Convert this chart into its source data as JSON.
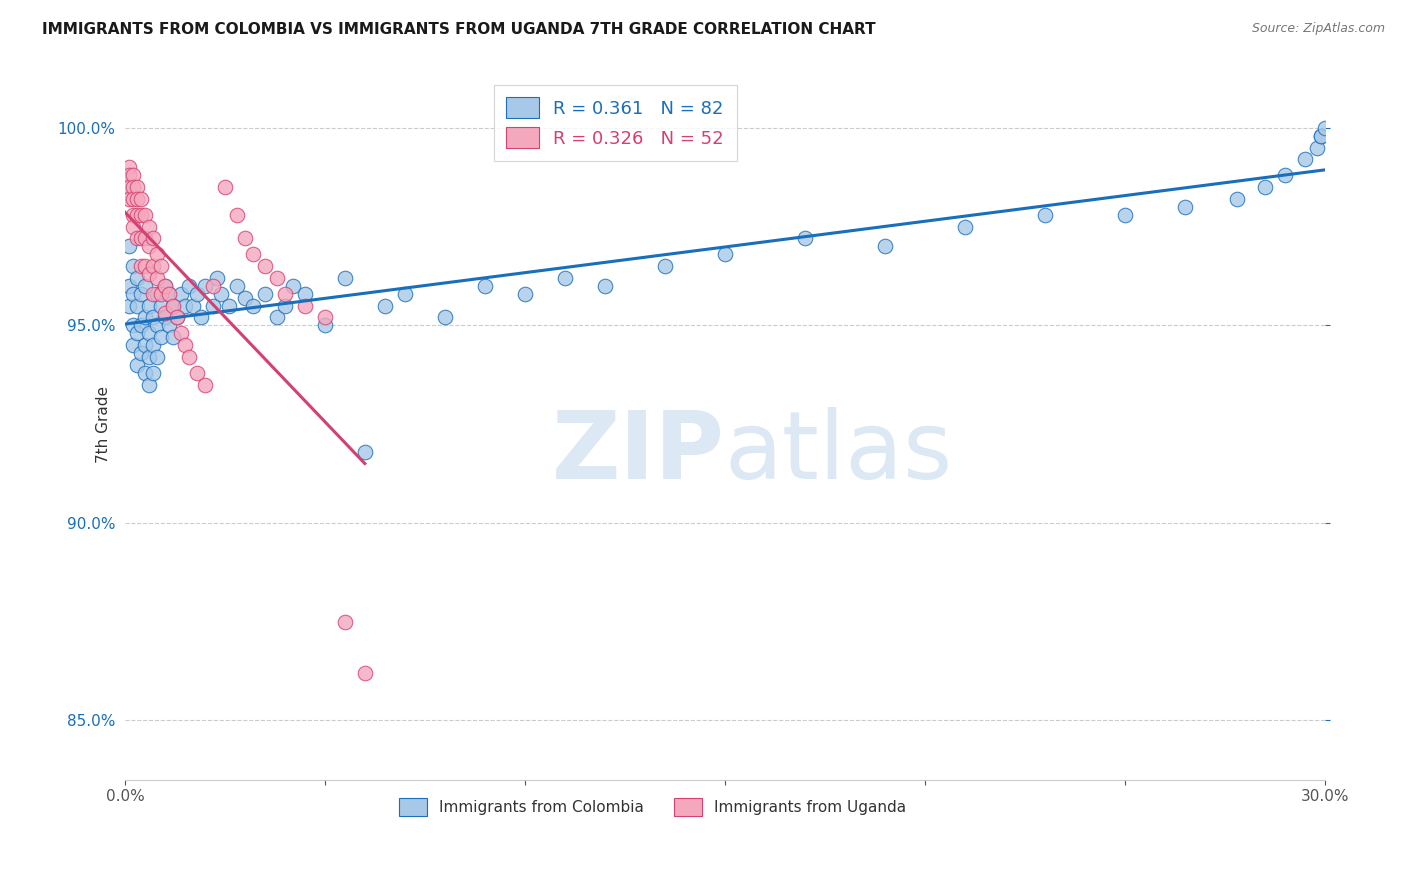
{
  "title": "IMMIGRANTS FROM COLOMBIA VS IMMIGRANTS FROM UGANDA 7TH GRADE CORRELATION CHART",
  "source": "Source: ZipAtlas.com",
  "ylabel": "7th Grade",
  "ytick_labels": [
    "85.0%",
    "90.0%",
    "95.0%",
    "100.0%"
  ],
  "ytick_values": [
    0.85,
    0.9,
    0.95,
    1.0
  ],
  "r_colombia": 0.361,
  "n_colombia": 82,
  "r_uganda": 0.326,
  "n_uganda": 52,
  "color_colombia": "#a8c8e8",
  "color_uganda": "#f4a8be",
  "line_color_colombia": "#1a6fba",
  "line_color_uganda": "#d44070",
  "watermark_color": "#dce8f4",
  "xlim_min": 0.0,
  "xlim_max": 0.3,
  "ylim_min": 0.835,
  "ylim_max": 1.015,
  "colombia_x": [
    0.001,
    0.001,
    0.001,
    0.002,
    0.002,
    0.002,
    0.002,
    0.003,
    0.003,
    0.003,
    0.003,
    0.004,
    0.004,
    0.004,
    0.005,
    0.005,
    0.005,
    0.005,
    0.006,
    0.006,
    0.006,
    0.006,
    0.007,
    0.007,
    0.007,
    0.008,
    0.008,
    0.008,
    0.009,
    0.009,
    0.01,
    0.01,
    0.011,
    0.011,
    0.012,
    0.012,
    0.013,
    0.014,
    0.015,
    0.016,
    0.017,
    0.018,
    0.019,
    0.02,
    0.022,
    0.023,
    0.024,
    0.026,
    0.028,
    0.03,
    0.032,
    0.035,
    0.038,
    0.04,
    0.042,
    0.045,
    0.05,
    0.055,
    0.06,
    0.065,
    0.07,
    0.08,
    0.09,
    0.1,
    0.11,
    0.12,
    0.135,
    0.15,
    0.17,
    0.19,
    0.21,
    0.23,
    0.25,
    0.265,
    0.278,
    0.285,
    0.29,
    0.295,
    0.298,
    0.299,
    0.299,
    0.3
  ],
  "colombia_y": [
    0.97,
    0.96,
    0.955,
    0.965,
    0.958,
    0.95,
    0.945,
    0.962,
    0.955,
    0.948,
    0.94,
    0.958,
    0.95,
    0.943,
    0.96,
    0.952,
    0.945,
    0.938,
    0.955,
    0.948,
    0.942,
    0.935,
    0.952,
    0.945,
    0.938,
    0.958,
    0.95,
    0.942,
    0.955,
    0.947,
    0.96,
    0.952,
    0.958,
    0.95,
    0.955,
    0.947,
    0.952,
    0.958,
    0.955,
    0.96,
    0.955,
    0.958,
    0.952,
    0.96,
    0.955,
    0.962,
    0.958,
    0.955,
    0.96,
    0.957,
    0.955,
    0.958,
    0.952,
    0.955,
    0.96,
    0.958,
    0.95,
    0.962,
    0.918,
    0.955,
    0.958,
    0.952,
    0.96,
    0.958,
    0.962,
    0.96,
    0.965,
    0.968,
    0.972,
    0.97,
    0.975,
    0.978,
    0.978,
    0.98,
    0.982,
    0.985,
    0.988,
    0.992,
    0.995,
    0.998,
    0.998,
    1.0
  ],
  "uganda_x": [
    0.001,
    0.001,
    0.001,
    0.001,
    0.002,
    0.002,
    0.002,
    0.002,
    0.002,
    0.003,
    0.003,
    0.003,
    0.003,
    0.004,
    0.004,
    0.004,
    0.004,
    0.005,
    0.005,
    0.005,
    0.006,
    0.006,
    0.006,
    0.007,
    0.007,
    0.007,
    0.008,
    0.008,
    0.009,
    0.009,
    0.01,
    0.01,
    0.011,
    0.012,
    0.013,
    0.014,
    0.015,
    0.016,
    0.018,
    0.02,
    0.022,
    0.025,
    0.028,
    0.03,
    0.032,
    0.035,
    0.038,
    0.04,
    0.045,
    0.05,
    0.055,
    0.06
  ],
  "uganda_y": [
    0.99,
    0.988,
    0.985,
    0.982,
    0.988,
    0.985,
    0.982,
    0.978,
    0.975,
    0.985,
    0.982,
    0.978,
    0.972,
    0.982,
    0.978,
    0.972,
    0.965,
    0.978,
    0.972,
    0.965,
    0.975,
    0.97,
    0.963,
    0.972,
    0.965,
    0.958,
    0.968,
    0.962,
    0.965,
    0.958,
    0.96,
    0.953,
    0.958,
    0.955,
    0.952,
    0.948,
    0.945,
    0.942,
    0.938,
    0.935,
    0.96,
    0.985,
    0.978,
    0.972,
    0.968,
    0.965,
    0.962,
    0.958,
    0.955,
    0.952,
    0.875,
    0.862
  ]
}
